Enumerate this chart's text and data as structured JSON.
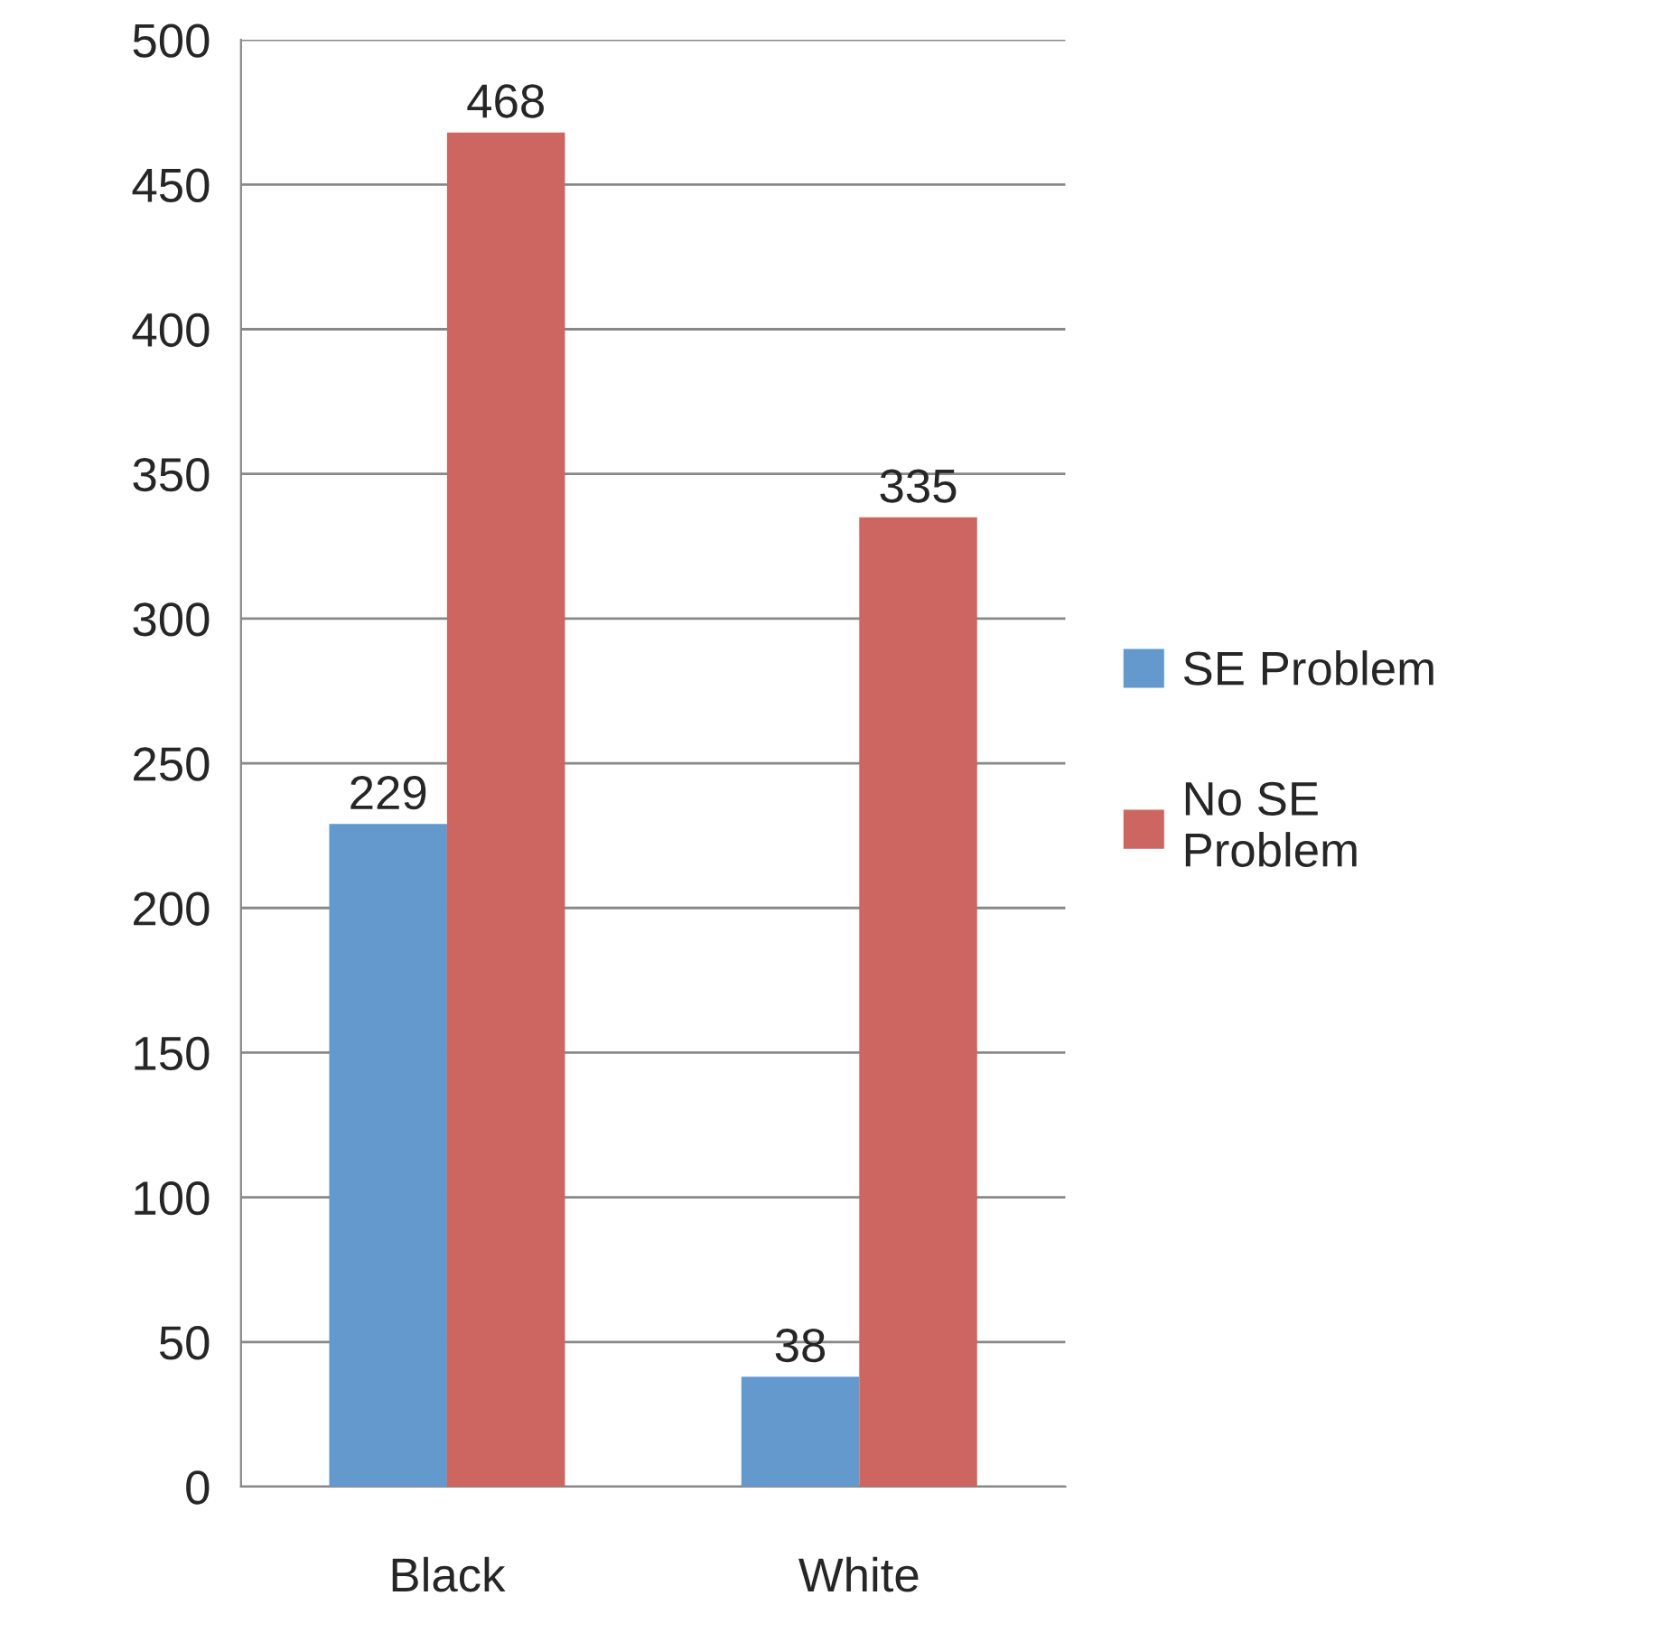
{
  "chart_data": {
    "type": "bar",
    "categories": [
      "Black",
      "White"
    ],
    "series": [
      {
        "name": "SE Problem",
        "color": "#6399cc",
        "values": [
          229,
          38
        ]
      },
      {
        "name": "No SE\nProblem",
        "color": "#cd6660",
        "values": [
          468,
          335
        ]
      }
    ],
    "ylim": [
      0,
      500
    ],
    "yticks": [
      0,
      50,
      100,
      150,
      200,
      250,
      300,
      350,
      400,
      450,
      500
    ],
    "grid": "y",
    "legend": "right",
    "data_labels": true
  }
}
